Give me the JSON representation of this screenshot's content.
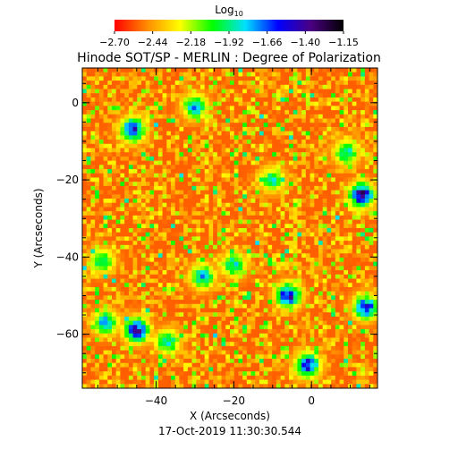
{
  "chart_data": {
    "type": "heatmap",
    "title": "Hinode SOT/SP - MERLIN : Degree of Polarization",
    "colorbar": {
      "label_base": "Log",
      "label_sub": "10",
      "tick_labels": [
        "−2.70",
        "−2.44",
        "−2.18",
        "−1.92",
        "−1.66",
        "−1.40",
        "−1.15"
      ],
      "range": [
        -2.7,
        -1.15
      ],
      "colors": [
        "#ff0000",
        "#ff8c00",
        "#ffff00",
        "#00ff00",
        "#00e0ff",
        "#0000ff",
        "#4b0082",
        "#000000"
      ]
    },
    "xlabel": "X (Arcseconds)",
    "ylabel": "Y (Arcseconds)",
    "xlim": [
      -59,
      17
    ],
    "ylim": [
      -74,
      9
    ],
    "x_ticks": [
      -40,
      -20,
      0
    ],
    "x_tick_labels": [
      "−40",
      "−20",
      "0"
    ],
    "y_ticks": [
      0,
      -20,
      -40,
      -60
    ],
    "y_tick_labels": [
      "0",
      "−20",
      "−40",
      "−60"
    ],
    "features": [
      {
        "x": -46,
        "y": -7,
        "value": -1.45
      },
      {
        "x": -30,
        "y": -1,
        "value": -1.7
      },
      {
        "x": 13,
        "y": -24,
        "value": -1.3
      },
      {
        "x": -45,
        "y": -59,
        "value": -1.4
      },
      {
        "x": -53,
        "y": -57,
        "value": -1.7
      },
      {
        "x": -6,
        "y": -50,
        "value": -1.4
      },
      {
        "x": -1,
        "y": -68,
        "value": -1.45
      },
      {
        "x": 14,
        "y": -53,
        "value": -1.5
      },
      {
        "x": -28,
        "y": -45,
        "value": -1.75
      },
      {
        "x": -20,
        "y": -42,
        "value": -1.8
      },
      {
        "x": -10,
        "y": -20,
        "value": -1.85
      },
      {
        "x": 9,
        "y": -13,
        "value": -1.8
      },
      {
        "x": -54,
        "y": -41,
        "value": -1.85
      },
      {
        "x": -37,
        "y": -62,
        "value": -1.8
      }
    ],
    "background_value": -2.55
  },
  "timestamp": "17-Oct-2019 11:30:30.544"
}
